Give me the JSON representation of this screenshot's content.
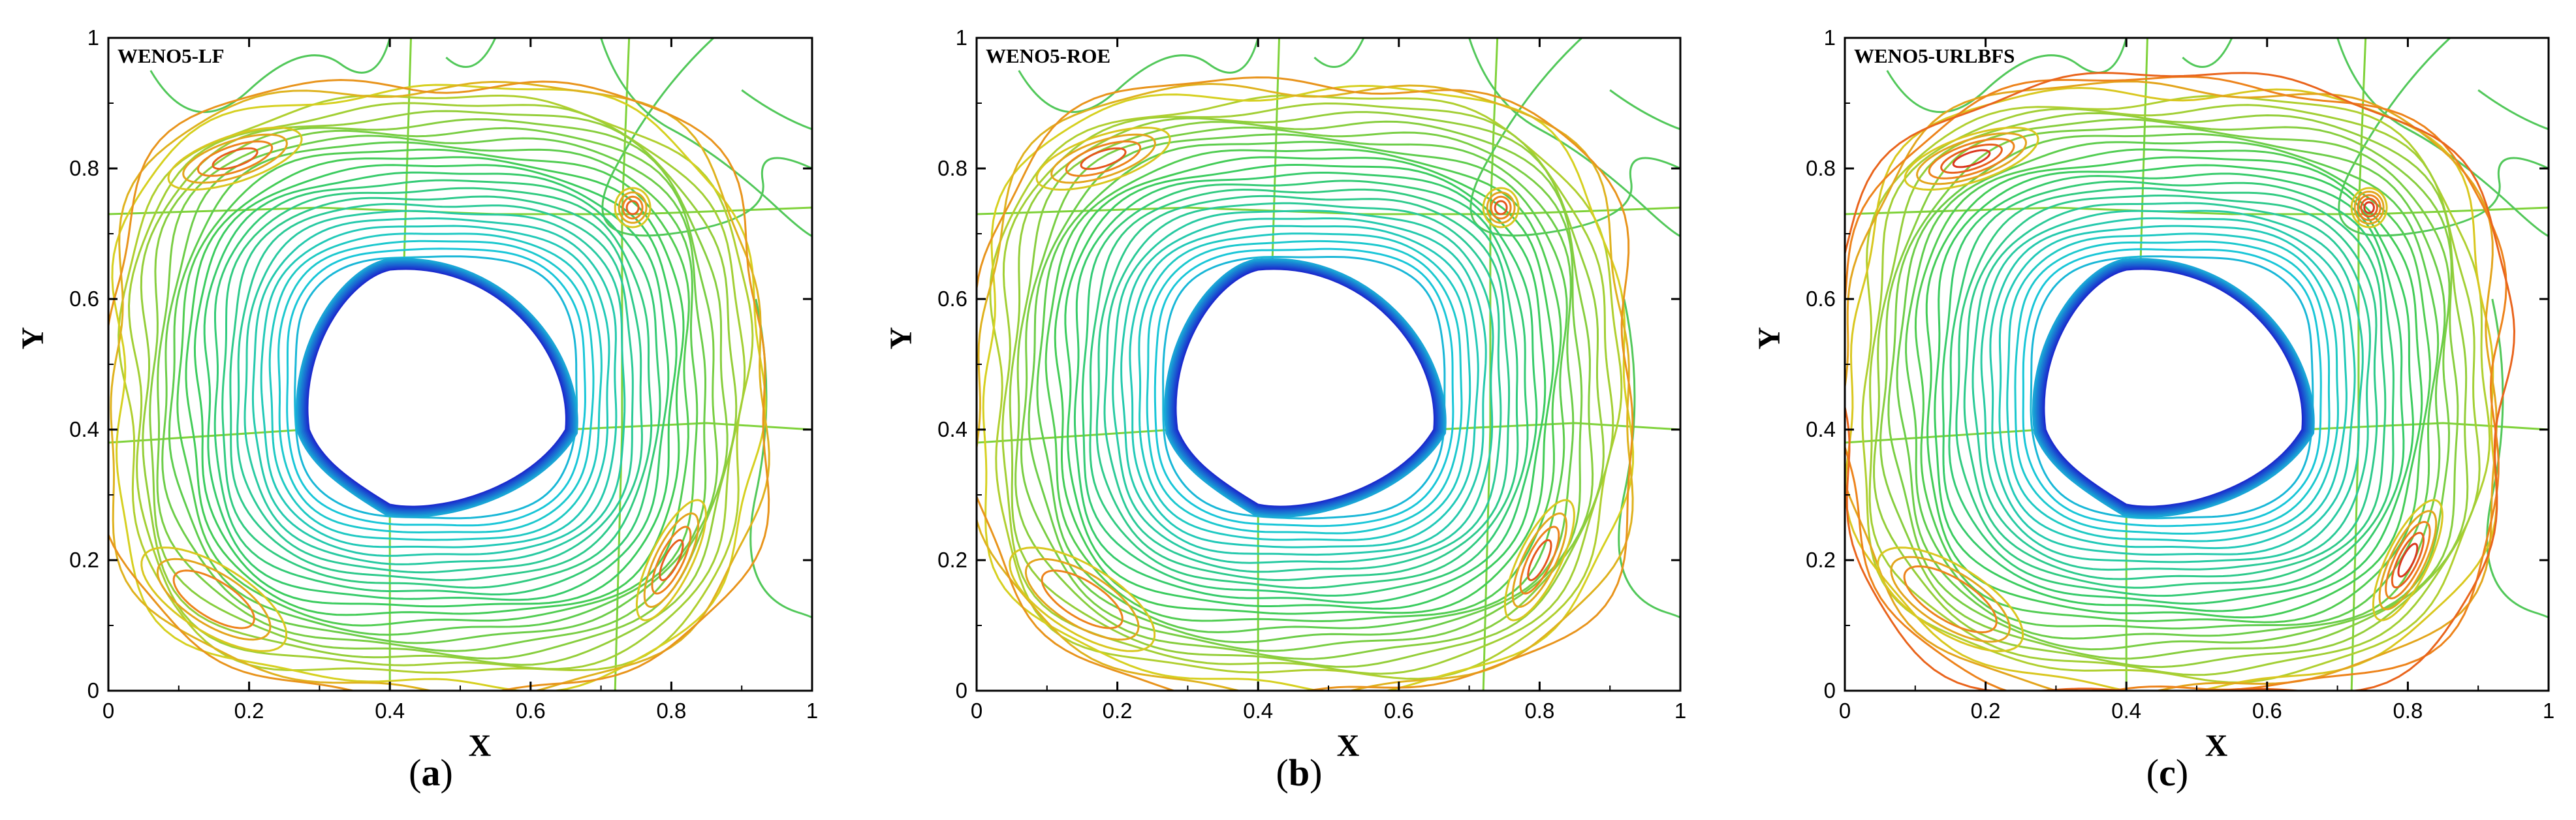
{
  "chart_data": [
    {
      "type": "contour",
      "title": "WENO5-LF",
      "xlabel": "X",
      "ylabel": "Y",
      "xlim": [
        0,
        1
      ],
      "ylim": [
        0,
        1
      ],
      "xticks": [
        "0",
        "0.2",
        "0.4",
        "0.6",
        "0.8",
        "1"
      ],
      "yticks": [
        "0",
        "0.2",
        "0.4",
        "0.6",
        "0.8",
        "1"
      ],
      "caption_prefix": "(",
      "caption_letter": "a",
      "caption_suffix": ")"
    },
    {
      "type": "contour",
      "title": "WENO5-ROE",
      "xlabel": "X",
      "ylabel": "Y",
      "xlim": [
        0,
        1
      ],
      "ylim": [
        0,
        1
      ],
      "xticks": [
        "0",
        "0.2",
        "0.4",
        "0.6",
        "0.8",
        "1"
      ],
      "yticks": [
        "0",
        "0.2",
        "0.4",
        "0.6",
        "0.8",
        "1"
      ],
      "caption_prefix": "(",
      "caption_letter": "b",
      "caption_suffix": ")"
    },
    {
      "type": "contour",
      "title": "WENO5-URLBFS",
      "xlabel": "X",
      "ylabel": "Y",
      "xlim": [
        0,
        1
      ],
      "ylim": [
        0,
        1
      ],
      "xticks": [
        "0",
        "0.2",
        "0.4",
        "0.6",
        "0.8",
        "1"
      ],
      "yticks": [
        "0",
        "0.2",
        "0.4",
        "0.6",
        "0.8",
        "1"
      ],
      "caption_prefix": "(",
      "caption_letter": "c",
      "caption_suffix": ")"
    }
  ],
  "colors": {
    "low": "#1a1acc",
    "mid_low": "#19c8d8",
    "mid": "#3ccc5a",
    "mid_high": "#d6d020",
    "high": "#f07a1a",
    "peak": "#d42020",
    "axis": "#000000"
  }
}
